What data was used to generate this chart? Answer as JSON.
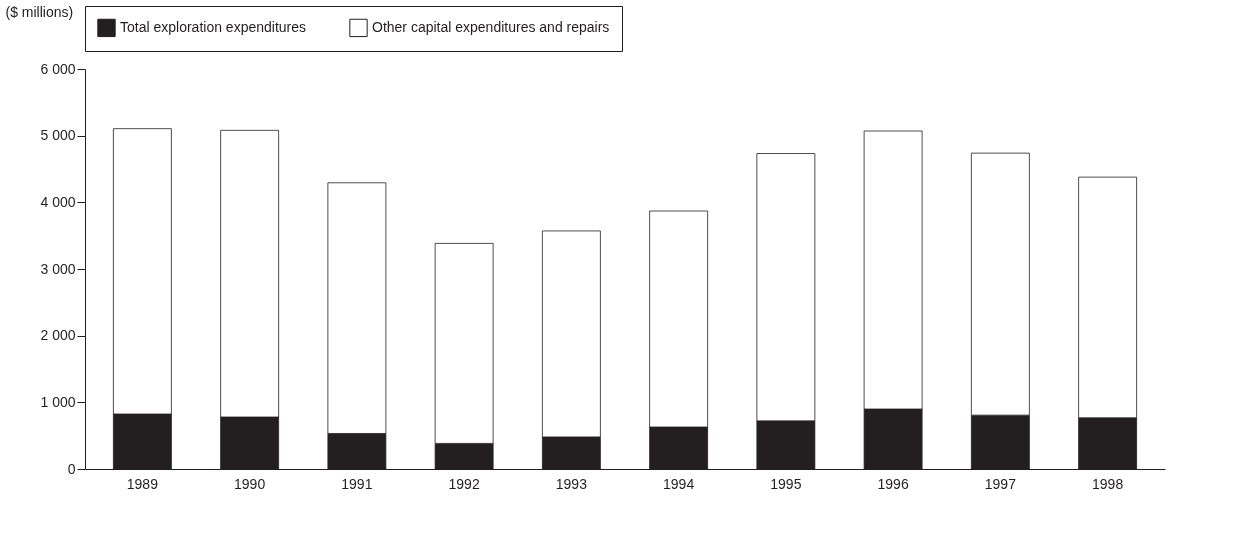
{
  "chart_data": {
    "type": "bar",
    "stacked": true,
    "ylabel": "($ millions)",
    "categories": [
      "1989",
      "1990",
      "1991",
      "1992",
      "1993",
      "1994",
      "1995",
      "1996",
      "1997",
      "1998"
    ],
    "series": [
      {
        "name": "Total exploration expenditures",
        "color": "#231f20",
        "values": [
          825,
          780,
          533,
          384,
          481,
          630,
          722,
          900,
          808,
          768
        ]
      },
      {
        "name": "Other capital expenditures and repairs",
        "color": "#ffffff",
        "values": [
          4280,
          4300,
          3760,
          3000,
          3090,
          3240,
          4010,
          4170,
          3930,
          3610
        ]
      }
    ],
    "ylim": [
      0,
      6000
    ],
    "yticks": [
      0,
      1000,
      2000,
      3000,
      4000,
      5000,
      6000
    ],
    "grid": false,
    "legend": "top"
  }
}
